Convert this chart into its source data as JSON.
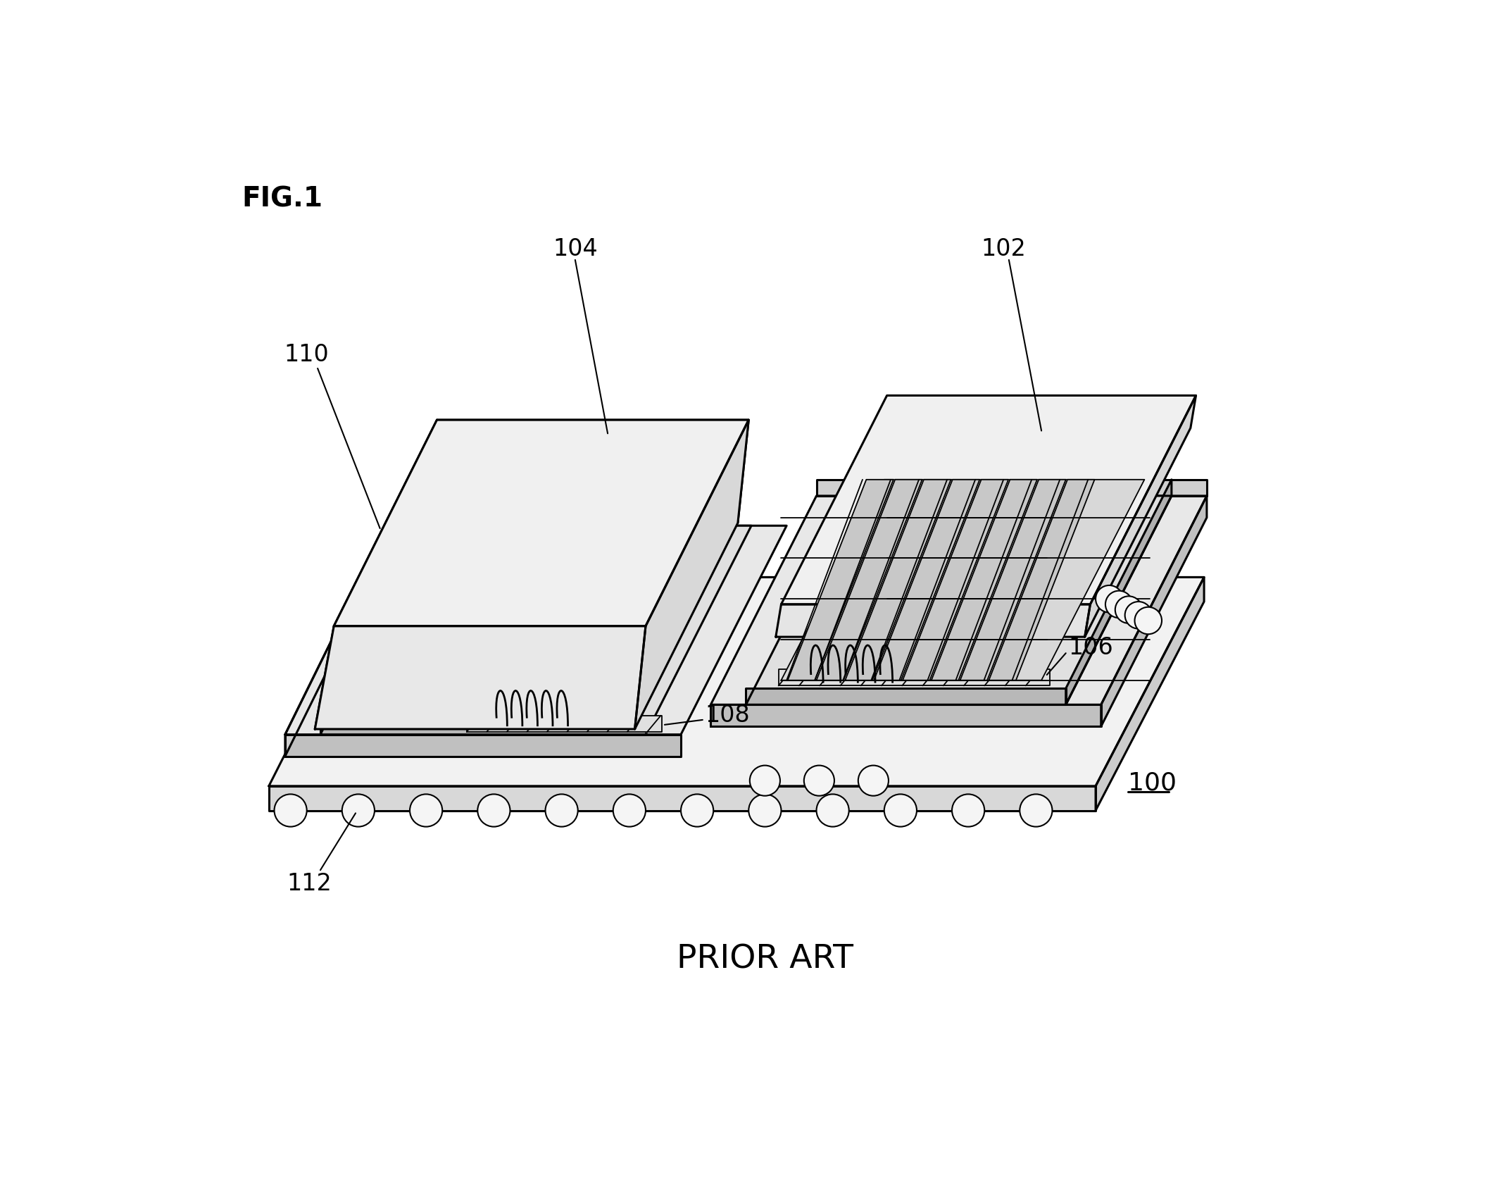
{
  "fig_label": "FIG.1",
  "prior_art_label": "PRIOR ART",
  "ref_100": "100",
  "ref_102": "102",
  "ref_104": "104",
  "ref_106": "106",
  "ref_108": "108",
  "ref_110": "110",
  "ref_112": "112",
  "bg_color": "#ffffff",
  "line_color": "#000000",
  "lw_main": 2.2,
  "lw_thin": 1.3,
  "fs_fig": 28,
  "fs_ref": 24,
  "fs_prior": 34
}
